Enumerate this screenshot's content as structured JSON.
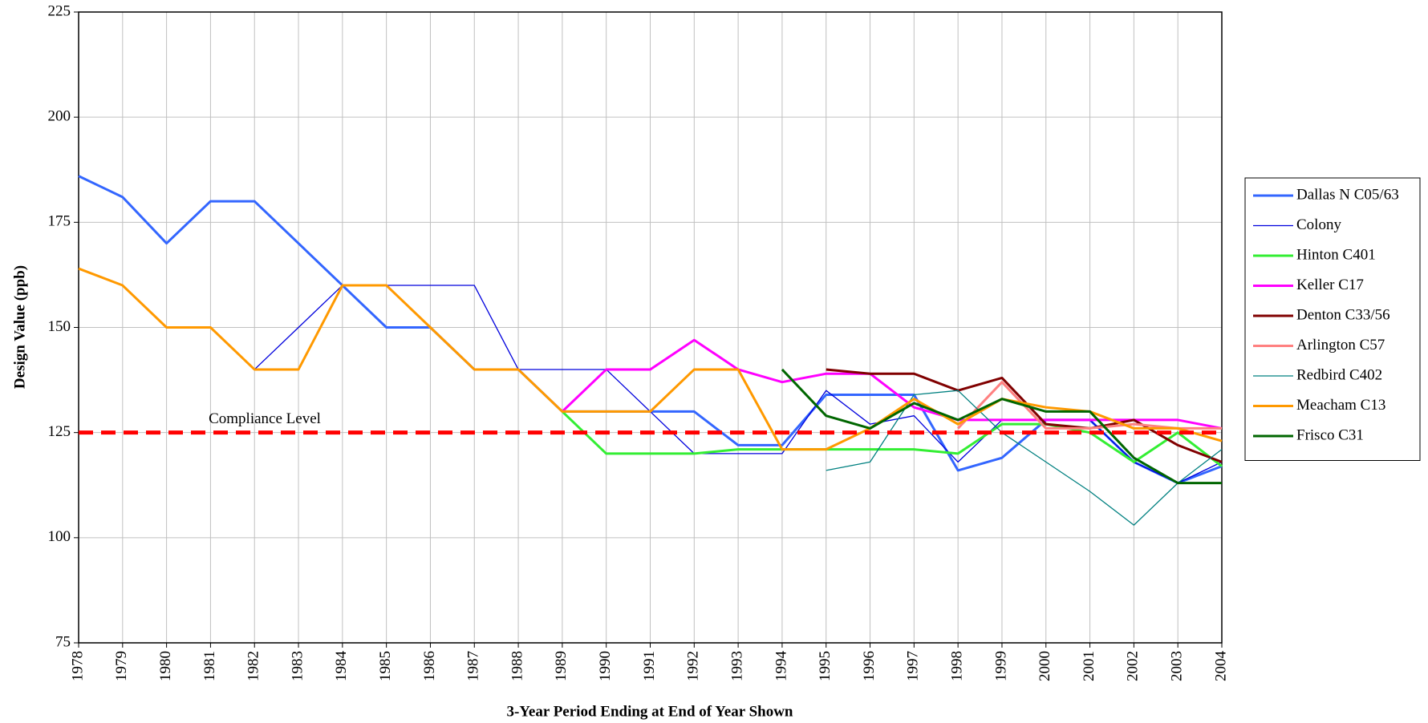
{
  "chart_data": {
    "type": "line",
    "x_label": "3-Year Period Ending at End of Year Shown",
    "y_label": "Design Value (ppb)",
    "x": [
      1978,
      1979,
      1980,
      1981,
      1982,
      1983,
      1984,
      1985,
      1986,
      1987,
      1988,
      1989,
      1990,
      1991,
      1992,
      1993,
      1994,
      1995,
      1996,
      1997,
      1998,
      1999,
      2000,
      2001,
      2002,
      2003,
      2004
    ],
    "xlim": [
      1978,
      2004
    ],
    "xticks": [
      1978,
      1979,
      1980,
      1981,
      1982,
      1983,
      1984,
      1985,
      1986,
      1987,
      1988,
      1989,
      1990,
      1991,
      1992,
      1993,
      1994,
      1995,
      1996,
      1997,
      1998,
      1999,
      2000,
      2001,
      2002,
      2003,
      2004
    ],
    "ylim": [
      75,
      225
    ],
    "yticks": [
      75,
      100,
      125,
      150,
      175,
      200,
      225
    ],
    "grid": true,
    "legend": "right",
    "reference_line": {
      "value": 125,
      "label": "Compliance Level",
      "color": "#ff0000"
    },
    "series": [
      {
        "name": "Dallas N C05/63",
        "color": "#3366ff",
        "width": 3,
        "values": [
          186,
          181,
          170,
          180,
          180,
          170,
          160,
          150,
          150,
          140,
          140,
          130,
          130,
          130,
          130,
          122,
          122,
          134,
          134,
          134,
          116,
          119,
          128,
          128,
          118,
          113,
          117
        ]
      },
      {
        "name": "Colony",
        "color": "#0000dd",
        "width": 1.3,
        "values": [
          null,
          null,
          null,
          null,
          140,
          150,
          160,
          160,
          160,
          160,
          140,
          140,
          140,
          130,
          120,
          120,
          120,
          135,
          127,
          129,
          118,
          128,
          128,
          128,
          118,
          113,
          118
        ]
      },
      {
        "name": "Hinton C401",
        "color": "#33ee33",
        "width": 3,
        "values": [
          null,
          null,
          null,
          null,
          null,
          null,
          null,
          null,
          null,
          null,
          null,
          130,
          120,
          120,
          120,
          121,
          121,
          121,
          121,
          121,
          120,
          127,
          127,
          125,
          118,
          125,
          117
        ]
      },
      {
        "name": "Keller C17",
        "color": "#ff00ff",
        "width": 3,
        "values": [
          null,
          null,
          null,
          null,
          null,
          null,
          null,
          null,
          null,
          null,
          null,
          130,
          140,
          140,
          147,
          140,
          137,
          139,
          139,
          131,
          128,
          128,
          128,
          128,
          128,
          128,
          126
        ]
      },
      {
        "name": "Denton C33/56",
        "color": "#800000",
        "width": 3,
        "values": [
          null,
          null,
          null,
          null,
          null,
          null,
          null,
          null,
          null,
          null,
          null,
          null,
          null,
          null,
          null,
          null,
          null,
          140,
          139,
          139,
          135,
          138,
          127,
          126,
          128,
          122,
          118
        ]
      },
      {
        "name": "Arlington C57",
        "color": "#ff8080",
        "width": 3,
        "values": [
          null,
          null,
          null,
          null,
          null,
          null,
          null,
          null,
          null,
          null,
          null,
          null,
          null,
          null,
          null,
          null,
          null,
          null,
          null,
          null,
          126,
          137,
          126,
          126,
          127,
          126,
          126
        ]
      },
      {
        "name": "Redbird C402",
        "color": "#008080",
        "width": 1.3,
        "values": [
          null,
          null,
          null,
          null,
          null,
          null,
          null,
          null,
          null,
          null,
          null,
          null,
          null,
          null,
          null,
          null,
          null,
          116,
          118,
          134,
          135,
          125,
          118,
          111,
          103,
          113,
          121
        ]
      },
      {
        "name": "Meacham C13",
        "color": "#ff9900",
        "width": 3,
        "values": [
          164,
          160,
          150,
          150,
          140,
          140,
          160,
          160,
          150,
          140,
          140,
          130,
          130,
          130,
          140,
          140,
          121,
          121,
          126,
          133,
          127,
          133,
          131,
          130,
          126,
          126,
          123
        ]
      },
      {
        "name": "Frisco C31",
        "color": "#006600",
        "width": 3,
        "values": [
          null,
          null,
          null,
          null,
          null,
          null,
          null,
          null,
          null,
          null,
          null,
          null,
          null,
          null,
          null,
          null,
          140,
          129,
          126,
          132,
          128,
          133,
          130,
          130,
          119,
          113,
          113
        ]
      }
    ]
  }
}
